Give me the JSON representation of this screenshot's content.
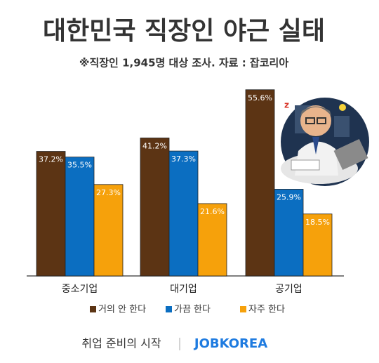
{
  "chart_data": {
    "type": "bar",
    "title": "대한민국 직장인 야근 실태",
    "subtitle": "※직장인 1,945명 대상 조사. 자료 : 잡코리아",
    "categories": [
      "중소기업",
      "대기업",
      "공기업"
    ],
    "series": [
      {
        "name": "거의 안 한다",
        "color": "#5c3414",
        "values": [
          37.2,
          41.2,
          55.6
        ],
        "value_labels": [
          "37.2%",
          "41.2%",
          "55.6%"
        ]
      },
      {
        "name": "가끔 한다",
        "color": "#0b6ec1",
        "values": [
          35.5,
          37.3,
          25.9
        ],
        "value_labels": [
          "35.5%",
          "37.3%",
          "25.9%"
        ]
      },
      {
        "name": "자주 한다",
        "color": "#f6a10b",
        "values": [
          27.3,
          21.6,
          18.5
        ],
        "value_labels": [
          "27.3%",
          "21.6%",
          "18.5%"
        ]
      }
    ],
    "footer": {
      "slogan": "취업 준비의 시작",
      "brand": "JOBKOREA"
    }
  }
}
